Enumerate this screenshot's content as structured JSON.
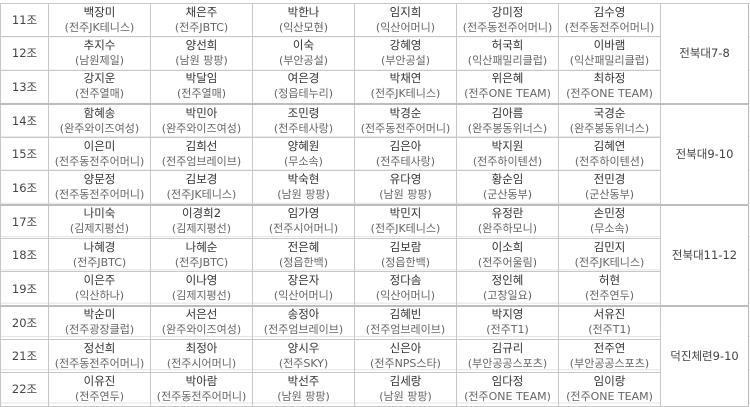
{
  "groups": [
    {
      "label": "11조",
      "players": [
        [
          "백장미",
          "(전주JK테니스)"
        ],
        [
          "채은주",
          "(전주JBTC)"
        ],
        [
          "박한나",
          "(익산모현)"
        ],
        [
          "임지희",
          "(익산어머니)"
        ],
        [
          "강미정",
          "(전주동전주어머니)"
        ],
        [
          "김수영",
          "(전주동전주어머니)"
        ]
      ]
    },
    {
      "label": "12조",
      "players": [
        [
          "추지수",
          "(남원제일)"
        ],
        [
          "양선희",
          "(남원 팡팡)"
        ],
        [
          "이숙",
          "(부안공설)"
        ],
        [
          "강혜영",
          "(부안공설)"
        ],
        [
          "허국희",
          "(익산패밀리클럽)"
        ],
        [
          "이바램",
          "(익산패밀리클럽)"
        ]
      ]
    },
    {
      "label": "13조",
      "players": [
        [
          "강지운",
          "(전주열매)"
        ],
        [
          "박달임",
          "(전주열매)"
        ],
        [
          "여은경",
          "(정읍테누리)"
        ],
        [
          "박채연",
          "(전주JK테니스)"
        ],
        [
          "위은혜",
          "(전주ONE TEAM)"
        ],
        [
          "최하정",
          "(전주ONE TEAM)"
        ]
      ]
    },
    {
      "label": "14조",
      "players": [
        [
          "함혜송",
          "(완주와이즈여성)"
        ],
        [
          "박민아",
          "(완주와이즈여성)"
        ],
        [
          "조민령",
          "(전주테사랑)"
        ],
        [
          "박경순",
          "(전주동전주어머니)"
        ],
        [
          "김아름",
          "(완주봉동위너스)"
        ],
        [
          "국경순",
          "(완주봉동위너스)"
        ]
      ]
    },
    {
      "label": "15조",
      "players": [
        [
          "이은미",
          "(전주동전주어머니)"
        ],
        [
          "김희선",
          "(전주엄브레이브)"
        ],
        [
          "양혜원",
          "(무소속)"
        ],
        [
          "김은아",
          "(전주테사랑)"
        ],
        [
          "박지원",
          "(전주하이텐션)"
        ],
        [
          "김혜연",
          "(전주하이텐션)"
        ]
      ]
    },
    {
      "label": "16조",
      "players": [
        [
          "양문정",
          "(전주동전주어머니)"
        ],
        [
          "김보경",
          "(전주JK테니스)"
        ],
        [
          "박숙현",
          "(남원 팡팡)"
        ],
        [
          "유다영",
          "(남원 팡팡)"
        ],
        [
          "황순임",
          "(군산동부)"
        ],
        [
          "전민경",
          "(군산동부)"
        ]
      ]
    },
    {
      "label": "17조",
      "players": [
        [
          "나미숙",
          "(김제지평선)"
        ],
        [
          "이경희2",
          "(김제지평선)"
        ],
        [
          "임가영",
          "(전주시어머니)"
        ],
        [
          "박민지",
          "(전주JK테니스)"
        ],
        [
          "유정란",
          "(완주하모니)"
        ],
        [
          "손민정",
          "(무소속)"
        ]
      ]
    },
    {
      "label": "18조",
      "players": [
        [
          "나혜경",
          "(전주JBTC)"
        ],
        [
          "나혜순",
          "(전주JBTC)"
        ],
        [
          "전은혜",
          "(정읍한백)"
        ],
        [
          "김보람",
          "(정읍한백)"
        ],
        [
          "이소희",
          "(전주어울림)"
        ],
        [
          "김민지",
          "(전주JK테니스)"
        ]
      ]
    },
    {
      "label": "19조",
      "players": [
        [
          "이은주",
          "(익산하나)"
        ],
        [
          "이나영",
          "(김제지평선)"
        ],
        [
          "장은자",
          "(익산어머니)"
        ],
        [
          "정다솜",
          "(익산어머니)"
        ],
        [
          "정인혜",
          "(고창일요)"
        ],
        [
          "허현",
          "(전주연두)"
        ]
      ]
    },
    {
      "label": "20조",
      "players": [
        [
          "박순미",
          "(전주광장클럽)"
        ],
        [
          "서은선",
          "(완주와이즈여성)"
        ],
        [
          "송정아",
          "(전주엄브레이브)"
        ],
        [
          "김혜빈",
          "(전주엄브레이브)"
        ],
        [
          "박지영",
          "(전주T1)"
        ],
        [
          "서유진",
          "(전주T1)"
        ]
      ]
    },
    {
      "label": "21조",
      "players": [
        [
          "정선희",
          "(전주동전주어머니)"
        ],
        [
          "최정아",
          "(전주시어머니)"
        ],
        [
          "양시우",
          "(전주SKY)"
        ],
        [
          "신은아",
          "(전주NPS스타)"
        ],
        [
          "김규리",
          "(부안공공스포츠)"
        ],
        [
          "전주연",
          "(부안공공스포츠)"
        ]
      ]
    },
    {
      "label": "22조",
      "players": [
        [
          "이유진",
          "(전주연두)"
        ],
        [
          "박아람",
          "(전주동전주어머니)"
        ],
        [
          "박선주",
          "(남원 팡팡)"
        ],
        [
          "김세랑",
          "(남원 팡팡)"
        ],
        [
          "임다정",
          "(전주ONE TEAM)"
        ],
        [
          "임이랑",
          "(전주ONE TEAM)"
        ]
      ]
    }
  ],
  "venues": [
    "전북대7-8",
    "전북대9-10",
    "전북대11-12",
    "덕진체련9-10"
  ]
}
